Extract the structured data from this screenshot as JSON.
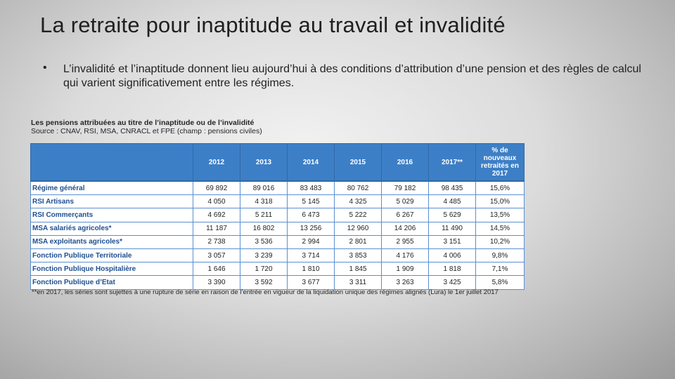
{
  "slide": {
    "title": "La retraite pour inaptitude au travail et invalidité",
    "bullet_marker": "•",
    "bullet_text": "L’invalidité et l’inaptitude donnent lieu aujourd’hui à des conditions d’attribution d’une pension et des règles de calcul qui varient significativement entre les régimes."
  },
  "table": {
    "title": "Les pensions attribuées au titre de l’inaptitude ou de l’invalidité",
    "source": "Source : CNAV, RSI, MSA, CNRACL et FPE (champ : pensions civiles)",
    "headers": [
      "",
      "2012",
      "2013",
      "2014",
      "2015",
      "2016",
      "2017**",
      "% de nouveaux retraités en 2017"
    ],
    "rows": [
      [
        "Régime général",
        "69 892",
        "89 016",
        "83 483",
        "80 762",
        "79 182",
        "98 435",
        "15,6%"
      ],
      [
        "RSI Artisans",
        "4 050",
        "4 318",
        "5 145",
        "4 325",
        "5 029",
        "4 485",
        "15,0%"
      ],
      [
        "RSI Commerçants",
        "4 692",
        "5 211",
        "6 473",
        "5 222",
        "6 267",
        "5 629",
        "13,5%"
      ],
      [
        "MSA salariés agricoles*",
        "11 187",
        "16 802",
        "13 256",
        "12 960",
        "14 206",
        "11 490",
        "14,5%"
      ],
      [
        "MSA exploitants agricoles*",
        "2 738",
        "3 536",
        "2 994",
        "2 801",
        "2 955",
        "3 151",
        "10,2%"
      ],
      [
        "Fonction Publique Territoriale",
        "3 057",
        "3 239",
        "3 714",
        "3 853",
        "4 176",
        "4 006",
        "9,8%"
      ],
      [
        "Fonction Publique Hospitalière",
        "1 646",
        "1 720",
        "1 810",
        "1 845",
        "1 909",
        "1 818",
        "7,1%"
      ],
      [
        "Fonction Publique d’Etat",
        "3 390",
        "3 592",
        "3 677",
        "3 311",
        "3 263",
        "3 425",
        "5,8%"
      ]
    ],
    "footnote": "**en 2017, les séries sont sujettes à une rupture de série en raison de l’entrée en vigueur de la liquidation unique des régimes alignés (Lura) le 1er juillet 2017"
  }
}
